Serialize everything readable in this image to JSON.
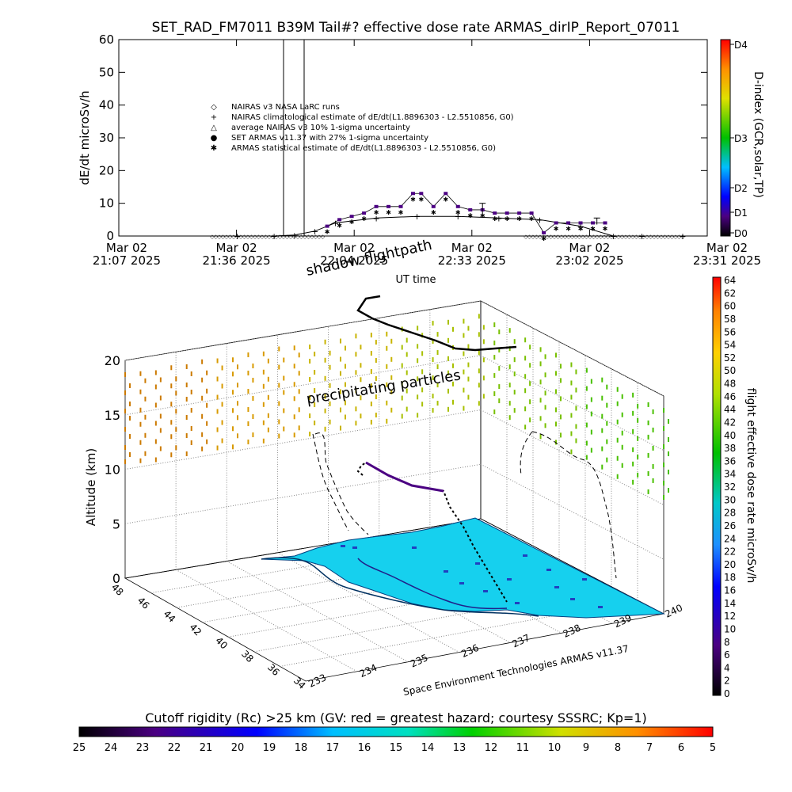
{
  "title": "SET_RAD_FM7011  B39M Tail#? effective dose rate ARMAS_dirIP_Report_07011",
  "top_chart": {
    "ylabel": "dE/dt microSv/h",
    "xlabel": "UT time",
    "y_ticks": [
      "0",
      "10",
      "20",
      "30",
      "40",
      "50",
      "60"
    ],
    "time_ticks": [
      {
        "l1": "Mar 02",
        "l2": "21:07 2025"
      },
      {
        "l1": "Mar 02",
        "l2": "21:36 2025"
      },
      {
        "l1": "Mar 02",
        "l2": "22:04 2025"
      },
      {
        "l1": "Mar 02",
        "l2": "22:33 2025"
      },
      {
        "l1": "Mar 02",
        "l2": "23:02 2025"
      },
      {
        "l1": "Mar 02",
        "l2": "23:31 2025"
      }
    ],
    "legend": [
      {
        "sym": "◇",
        "label": "NAIRAS v3 NASA LaRC runs"
      },
      {
        "sym": "+",
        "label": "NAIRAS climatological estimate of dE/dt(L1.8896303 - L2.5510856, G0)"
      },
      {
        "sym": "△",
        "label": "average NAIRAS v3 10% 1-sigma uncertainty"
      },
      {
        "sym": "●",
        "label": "SET ARMAS v11.37 with 27% 1-sigma uncertainty",
        "color": "#1a1aff"
      },
      {
        "sym": "✱",
        "label": "ARMAS statistical estimate of dE/dt(L1.8896303 - L2.5510856, G0)"
      }
    ],
    "dindex_label": "D-index (GCR,solar,TP)",
    "dindex_ticks": [
      "D0",
      "D1",
      "D2",
      "D3",
      "D4"
    ]
  },
  "chart_data": [
    {
      "type": "scatter",
      "title": "SET_RAD_FM7011  B39M Tail#? effective dose rate ARMAS_dirIP_Report_07011",
      "xlabel": "UT time",
      "ylabel": "dE/dt microSv/h",
      "xlim": [
        "21:07",
        "23:31"
      ],
      "ylim": [
        0,
        60
      ],
      "series": [
        {
          "name": "SET ARMAS v11.37 with 27% 1-sigma uncertainty",
          "x": [
            "21:58",
            "22:01",
            "22:04",
            "22:07",
            "22:10",
            "22:13",
            "22:16",
            "22:19",
            "22:21",
            "22:24",
            "22:27",
            "22:30",
            "22:33",
            "22:36",
            "22:39",
            "22:42",
            "22:45",
            "22:48",
            "22:51",
            "22:54",
            "22:57",
            "23:00",
            "23:03",
            "23:06"
          ],
          "values": [
            3,
            5,
            6,
            7,
            9,
            9,
            9,
            13,
            13,
            9,
            13,
            9,
            8,
            8,
            7,
            7,
            7,
            7,
            1,
            4,
            4,
            4,
            4,
            4
          ]
        },
        {
          "name": "NAIRAS climatological estimate of dE/dt(L1.8896303 - L2.5510856, G0)",
          "x": [
            "21:36",
            "21:45",
            "21:50",
            "21:55",
            "22:00",
            "22:10",
            "22:20",
            "22:30",
            "22:40",
            "22:50",
            "23:00",
            "23:08",
            "23:15",
            "23:25"
          ],
          "values": [
            0,
            0,
            0.3,
            1.5,
            4,
            5.5,
            6,
            6,
            5.5,
            5,
            3,
            0,
            0,
            0
          ]
        }
      ]
    },
    {
      "type": "scatter",
      "title": "",
      "xlabel": "",
      "ylabel": "Altitude (km)",
      "zlim": [
        0,
        20
      ],
      "z_ticks": [
        0,
        5,
        10,
        15,
        20
      ],
      "lat_ticks": [
        34,
        36,
        38,
        40,
        42,
        44,
        46,
        48
      ],
      "lon_ticks": [
        233,
        234,
        235,
        236,
        237,
        238,
        239,
        240
      ],
      "annotations": [
        "shadow flightpath",
        "precipitating particles",
        "Space Environment Technologies ARMAS v11.37"
      ]
    }
  ],
  "scene": {
    "label_shadow": "shadow flightpath",
    "label_precip": "precipitating particles",
    "ylabel": "Altitude (km)",
    "credit": "Space Environment Technologies ARMAS v11.37",
    "z_ticks": [
      "0",
      "5",
      "10",
      "15",
      "20"
    ],
    "lat_ticks": [
      "34",
      "36",
      "38",
      "40",
      "42",
      "44",
      "46",
      "48"
    ],
    "lon_ticks": [
      "233",
      "234",
      "235",
      "236",
      "237",
      "238",
      "239",
      "240"
    ]
  },
  "rate_bar": {
    "label": "flight effective dose rate microSv/h",
    "ticks": [
      "0",
      "2",
      "4",
      "6",
      "8",
      "10",
      "12",
      "14",
      "16",
      "18",
      "20",
      "22",
      "24",
      "26",
      "28",
      "30",
      "32",
      "34",
      "36",
      "38",
      "40",
      "42",
      "44",
      "46",
      "48",
      "50",
      "52",
      "54",
      "56",
      "58",
      "60",
      "62",
      "64"
    ]
  },
  "cutoff_bar": {
    "label": "Cutoff rigidity (Rc) >25 km (GV: red = greatest hazard; courtesy SSSRC; Kp=1)",
    "ticks": [
      "25",
      "24",
      "23",
      "22",
      "21",
      "20",
      "19",
      "18",
      "17",
      "16",
      "15",
      "14",
      "13",
      "12",
      "11",
      "10",
      "9",
      "8",
      "7",
      "6",
      "5"
    ]
  }
}
